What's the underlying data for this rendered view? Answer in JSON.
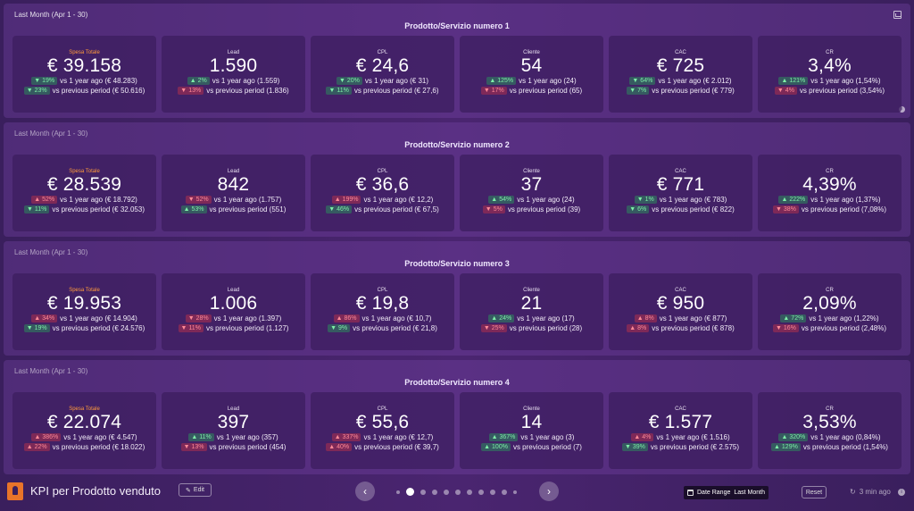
{
  "sections": [
    {
      "period": "Last Month (Apr 1 - 30)",
      "title": "Prodotto/Servizio numero 1",
      "cards": [
        {
          "label": "Spesa Totale",
          "value": "€ 39.158",
          "yoy": {
            "dir": "down",
            "tone": "good",
            "pct": "19%",
            "text": "vs 1 year ago (€ 48.283)"
          },
          "pp": {
            "dir": "down",
            "tone": "good",
            "pct": "23%",
            "text": "vs previous period (€ 50.616)"
          }
        },
        {
          "label": "Lead",
          "value": "1.590",
          "yoy": {
            "dir": "up",
            "tone": "good",
            "pct": "2%",
            "text": "vs 1 year ago (1.559)"
          },
          "pp": {
            "dir": "down",
            "tone": "bad",
            "pct": "13%",
            "text": "vs previous period (1.836)"
          }
        },
        {
          "label": "CPL",
          "value": "€ 24,6",
          "yoy": {
            "dir": "down",
            "tone": "good",
            "pct": "20%",
            "text": "vs 1 year ago (€ 31)"
          },
          "pp": {
            "dir": "down",
            "tone": "good",
            "pct": "11%",
            "text": "vs previous period (€ 27,6)"
          }
        },
        {
          "label": "Cliente",
          "value": "54",
          "yoy": {
            "dir": "up",
            "tone": "good",
            "pct": "125%",
            "text": "vs 1 year ago (24)"
          },
          "pp": {
            "dir": "down",
            "tone": "bad",
            "pct": "17%",
            "text": "vs previous period (65)"
          }
        },
        {
          "label": "CAC",
          "value": "€ 725",
          "yoy": {
            "dir": "down",
            "tone": "good",
            "pct": "64%",
            "text": "vs 1 year ago (€ 2.012)"
          },
          "pp": {
            "dir": "down",
            "tone": "good",
            "pct": "7%",
            "text": "vs previous period (€ 779)"
          }
        },
        {
          "label": "CR",
          "value": "3,4%",
          "yoy": {
            "dir": "up",
            "tone": "good",
            "pct": "121%",
            "text": "vs 1 year ago (1,54%)"
          },
          "pp": {
            "dir": "down",
            "tone": "bad",
            "pct": "4%",
            "text": "vs previous period (3,54%)"
          }
        }
      ]
    },
    {
      "period": "Last Month (Apr 1 - 30)",
      "title": "Prodotto/Servizio numero 2",
      "cards": [
        {
          "label": "Spesa Totale",
          "value": "€ 28.539",
          "yoy": {
            "dir": "up",
            "tone": "bad",
            "pct": "52%",
            "text": "vs 1 year ago (€ 18.792)"
          },
          "pp": {
            "dir": "down",
            "tone": "good",
            "pct": "11%",
            "text": "vs previous period (€ 32.053)"
          }
        },
        {
          "label": "Lead",
          "value": "842",
          "yoy": {
            "dir": "down",
            "tone": "bad",
            "pct": "52%",
            "text": "vs 1 year ago (1.757)"
          },
          "pp": {
            "dir": "up",
            "tone": "good",
            "pct": "53%",
            "text": "vs previous period (551)"
          }
        },
        {
          "label": "CPL",
          "value": "€ 36,6",
          "yoy": {
            "dir": "up",
            "tone": "bad",
            "pct": "199%",
            "text": "vs 1 year ago (€ 12,2)"
          },
          "pp": {
            "dir": "down",
            "tone": "good",
            "pct": "46%",
            "text": "vs previous period (€ 67,5)"
          }
        },
        {
          "label": "Cliente",
          "value": "37",
          "yoy": {
            "dir": "up",
            "tone": "good",
            "pct": "54%",
            "text": "vs 1 year ago (24)"
          },
          "pp": {
            "dir": "down",
            "tone": "bad",
            "pct": "5%",
            "text": "vs previous period (39)"
          }
        },
        {
          "label": "CAC",
          "value": "€ 771",
          "yoy": {
            "dir": "down",
            "tone": "good",
            "pct": "1%",
            "text": "vs 1 year ago (€ 783)"
          },
          "pp": {
            "dir": "down",
            "tone": "good",
            "pct": "6%",
            "text": "vs previous period (€ 822)"
          }
        },
        {
          "label": "CR",
          "value": "4,39%",
          "yoy": {
            "dir": "up",
            "tone": "good",
            "pct": "222%",
            "text": "vs 1 year ago (1,37%)"
          },
          "pp": {
            "dir": "down",
            "tone": "bad",
            "pct": "38%",
            "text": "vs previous period (7,08%)"
          }
        }
      ]
    },
    {
      "period": "Last Month (Apr 1 - 30)",
      "title": "Prodotto/Servizio numero 3",
      "cards": [
        {
          "label": "Spesa Totale",
          "value": "€ 19.953",
          "yoy": {
            "dir": "up",
            "tone": "bad",
            "pct": "34%",
            "text": "vs 1 year ago (€ 14.904)"
          },
          "pp": {
            "dir": "down",
            "tone": "good",
            "pct": "19%",
            "text": "vs previous period (€ 24.576)"
          }
        },
        {
          "label": "Lead",
          "value": "1.006",
          "yoy": {
            "dir": "down",
            "tone": "bad",
            "pct": "28%",
            "text": "vs 1 year ago (1.397)"
          },
          "pp": {
            "dir": "down",
            "tone": "bad",
            "pct": "11%",
            "text": "vs previous period (1.127)"
          }
        },
        {
          "label": "CPL",
          "value": "€ 19,8",
          "yoy": {
            "dir": "up",
            "tone": "bad",
            "pct": "86%",
            "text": "vs 1 year ago (€ 10,7)"
          },
          "pp": {
            "dir": "down",
            "tone": "good",
            "pct": "9%",
            "text": "vs previous period (€ 21,8)"
          }
        },
        {
          "label": "Cliente",
          "value": "21",
          "yoy": {
            "dir": "up",
            "tone": "good",
            "pct": "24%",
            "text": "vs 1 year ago (17)"
          },
          "pp": {
            "dir": "down",
            "tone": "bad",
            "pct": "25%",
            "text": "vs previous period (28)"
          }
        },
        {
          "label": "CAC",
          "value": "€ 950",
          "yoy": {
            "dir": "up",
            "tone": "bad",
            "pct": "8%",
            "text": "vs 1 year ago (€ 877)"
          },
          "pp": {
            "dir": "up",
            "tone": "bad",
            "pct": "8%",
            "text": "vs previous period (€ 878)"
          }
        },
        {
          "label": "CR",
          "value": "2,09%",
          "yoy": {
            "dir": "up",
            "tone": "good",
            "pct": "72%",
            "text": "vs 1 year ago (1,22%)"
          },
          "pp": {
            "dir": "down",
            "tone": "bad",
            "pct": "16%",
            "text": "vs previous period (2,48%)"
          }
        }
      ]
    },
    {
      "period": "Last Month (Apr 1 - 30)",
      "title": "Prodotto/Servizio numero 4",
      "cards": [
        {
          "label": "Spesa Totale",
          "value": "€ 22.074",
          "yoy": {
            "dir": "up",
            "tone": "bad",
            "pct": "386%",
            "text": "vs 1 year ago (€ 4.547)"
          },
          "pp": {
            "dir": "up",
            "tone": "bad",
            "pct": "22%",
            "text": "vs previous period (€ 18.022)"
          }
        },
        {
          "label": "Lead",
          "value": "397",
          "yoy": {
            "dir": "up",
            "tone": "good",
            "pct": "11%",
            "text": "vs 1 year ago (357)"
          },
          "pp": {
            "dir": "down",
            "tone": "bad",
            "pct": "13%",
            "text": "vs previous period (454)"
          }
        },
        {
          "label": "CPL",
          "value": "€ 55,6",
          "yoy": {
            "dir": "up",
            "tone": "bad",
            "pct": "337%",
            "text": "vs 1 year ago (€ 12,7)"
          },
          "pp": {
            "dir": "up",
            "tone": "bad",
            "pct": "40%",
            "text": "vs previous period (€ 39,7)"
          }
        },
        {
          "label": "Cliente",
          "value": "14",
          "yoy": {
            "dir": "up",
            "tone": "good",
            "pct": "367%",
            "text": "vs 1 year ago (3)"
          },
          "pp": {
            "dir": "up",
            "tone": "good",
            "pct": "100%",
            "text": "vs previous period (7)"
          }
        },
        {
          "label": "CAC",
          "value": "€ 1.577",
          "yoy": {
            "dir": "up",
            "tone": "bad",
            "pct": "4%",
            "text": "vs 1 year ago (€ 1.516)"
          },
          "pp": {
            "dir": "down",
            "tone": "good",
            "pct": "39%",
            "text": "vs previous period (€ 2.575)"
          }
        },
        {
          "label": "CR",
          "value": "3,53%",
          "yoy": {
            "dir": "up",
            "tone": "good",
            "pct": "320%",
            "text": "vs 1 year ago (0,84%)"
          },
          "pp": {
            "dir": "up",
            "tone": "good",
            "pct": "129%",
            "text": "vs previous period (1,54%)"
          }
        }
      ]
    }
  ],
  "footer": {
    "app_title": "KPI per Prodotto venduto",
    "edit_label": "Edit",
    "pagination": {
      "total": 11,
      "active": 2
    },
    "date_range_label": "Date Range",
    "date_range_value": "Last Month",
    "reset_label": "Reset",
    "refreshed": "3 min ago"
  },
  "colors": {
    "good": "#7ef0a8",
    "bad": "#ff8a98",
    "label_orange": "#ff9a3c"
  },
  "icons": {
    "up": "▲",
    "down": "▼",
    "prev": "‹",
    "next": "›",
    "edit": "✎",
    "refresh": "↻"
  }
}
